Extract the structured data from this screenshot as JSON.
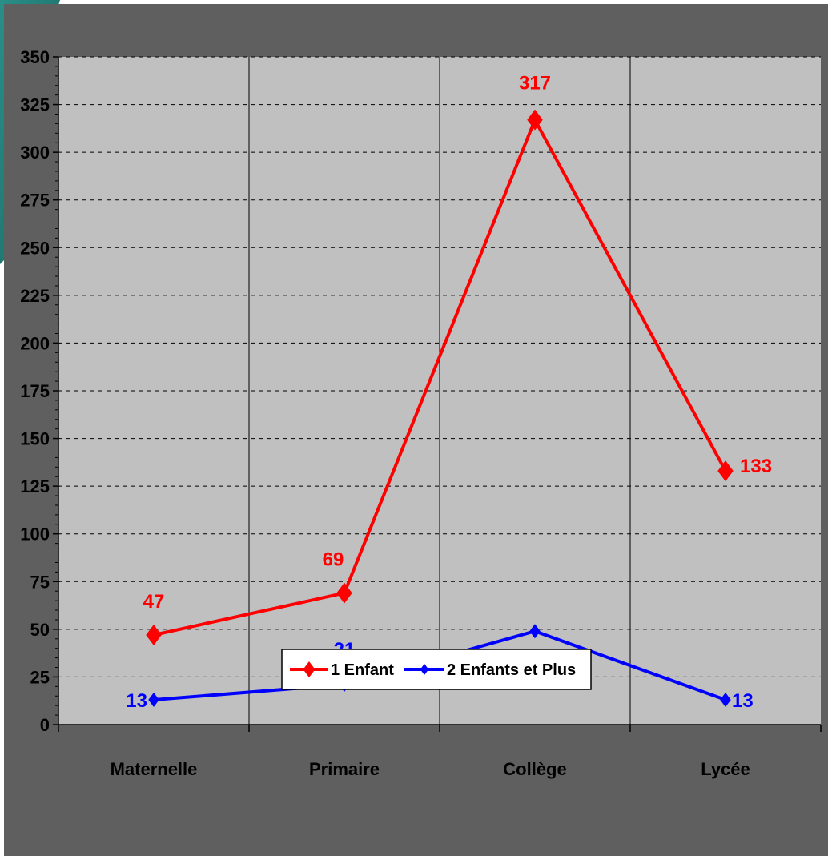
{
  "colors": {
    "chart_area": "#5f5f5f",
    "plot_area": "#c0c0c0",
    "teal_accent": "#1f7f7a",
    "series_1": "#ff0000",
    "series_2": "#0000ff"
  },
  "chart_data": {
    "type": "line",
    "title": "",
    "xlabel": "",
    "ylabel": "",
    "categories": [
      "Maternelle",
      "Primaire",
      "Collège",
      "Lycée"
    ],
    "ylim": [
      0,
      350
    ],
    "yticks": [
      0,
      25,
      50,
      75,
      100,
      125,
      150,
      175,
      200,
      225,
      250,
      275,
      300,
      325,
      350
    ],
    "grid": "horizontal dashed, vertical solid",
    "legend_position": "bottom",
    "series": [
      {
        "name": "1 Enfant",
        "color": "#ff0000",
        "marker": "diamond",
        "values": [
          47,
          69,
          317,
          133
        ]
      },
      {
        "name": "2 Enfants et Plus",
        "color": "#0000ff",
        "marker": "diamond",
        "values": [
          13,
          21,
          49,
          13
        ]
      }
    ]
  }
}
